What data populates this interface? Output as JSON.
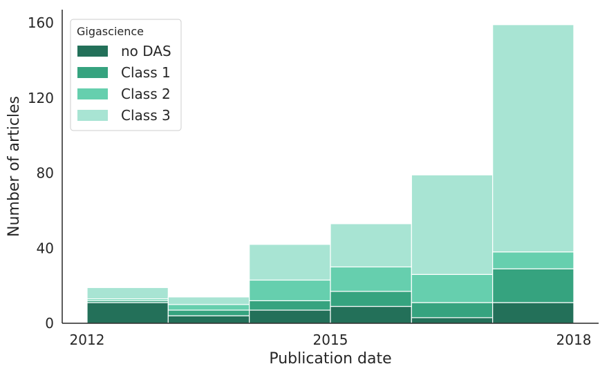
{
  "chart_data": {
    "type": "bar",
    "stacked": true,
    "categories": [
      "2012",
      "2013",
      "2014",
      "2015",
      "2016",
      "2017"
    ],
    "bin_edges": [
      2012,
      2013,
      2014,
      2015,
      2016,
      2017,
      2018
    ],
    "series": [
      {
        "name": "no DAS",
        "color": "#237059",
        "values": [
          11,
          4,
          7,
          9,
          3,
          11
        ]
      },
      {
        "name": "Class 1",
        "color": "#36a37f",
        "values": [
          1,
          3,
          5,
          8,
          8,
          18
        ]
      },
      {
        "name": "Class 2",
        "color": "#66cfae",
        "values": [
          1,
          3,
          11,
          13,
          15,
          9
        ]
      },
      {
        "name": "Class 3",
        "color": "#a8e4d3",
        "values": [
          6,
          4,
          19,
          23,
          53,
          121
        ]
      }
    ],
    "title": "",
    "xlabel": "Publication date",
    "ylabel": "Number of articles",
    "xlim": [
      2012,
      2018
    ],
    "ylim": [
      0,
      167
    ],
    "xticks": [
      2012,
      2015,
      2018
    ],
    "yticks": [
      0,
      40,
      80,
      120,
      160
    ],
    "legend_title": "Gigascience",
    "legend_position": "top-left",
    "grid": false
  }
}
